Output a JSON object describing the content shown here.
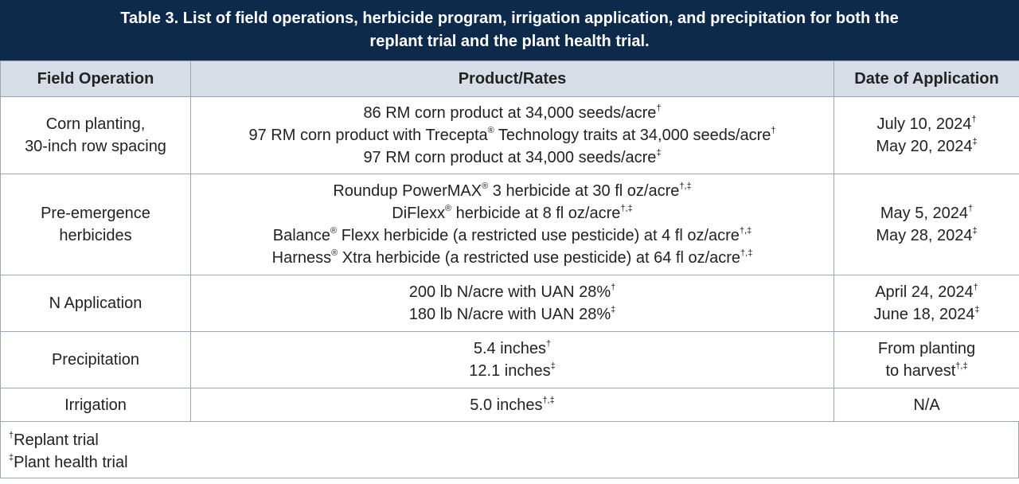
{
  "title": {
    "line1": "Table 3. List of field operations, herbicide program, irrigation application, and precipitation for both the",
    "line2": "replant trial and the plant health trial."
  },
  "headers": {
    "operation": "Field Operation",
    "product": "Product/Rates",
    "date": "Date of Application"
  },
  "rows": [
    {
      "operation": [
        "Corn planting,",
        "30-inch row spacing"
      ],
      "products": [
        {
          "pre": "86 RM corn product at 34,000 seeds/acre",
          "sup": "†"
        },
        {
          "pre": "97 RM corn product with Trecepta",
          "mark": "®",
          "post": " Technology traits at 34,000 seeds/acre",
          "sup": "†"
        },
        {
          "pre": "97 RM corn product at 34,000 seeds/acre",
          "sup": "‡"
        }
      ],
      "dates": [
        {
          "text": "July 10, 2024",
          "sup": "†"
        },
        {
          "text": "May 20, 2024",
          "sup": "‡"
        }
      ]
    },
    {
      "operation": [
        "Pre-emergence",
        "herbicides"
      ],
      "products": [
        {
          "pre": "Roundup PowerMAX",
          "mark": "®",
          "post": " 3 herbicide at 30 fl oz/acre",
          "sup": "†,‡"
        },
        {
          "pre": "DiFlexx",
          "mark": "®",
          "post": " herbicide at 8 fl oz/acre",
          "sup": "†,‡"
        },
        {
          "pre": "Balance",
          "mark": "®",
          "post": " Flexx herbicide (a restricted use pesticide) at 4 fl oz/acre",
          "sup": "†,‡"
        },
        {
          "pre": "Harness",
          "mark": "®",
          "post": " Xtra herbicide (a restricted use pesticide) at 64 fl oz/acre",
          "sup": "†,‡"
        }
      ],
      "dates": [
        {
          "text": "May 5, 2024",
          "sup": "†"
        },
        {
          "text": "May 28, 2024",
          "sup": "‡"
        }
      ]
    },
    {
      "operation": [
        "N Application"
      ],
      "products": [
        {
          "pre": "200 lb N/acre with UAN 28%",
          "sup": "†"
        },
        {
          "pre": "180 lb N/acre with UAN 28%",
          "sup": "‡"
        }
      ],
      "dates": [
        {
          "text": "April 24, 2024",
          "sup": "†"
        },
        {
          "text": "June 18, 2024",
          "sup": "‡"
        }
      ]
    },
    {
      "operation": [
        "Precipitation"
      ],
      "products": [
        {
          "pre": "5.4 inches",
          "sup": "†"
        },
        {
          "pre": "12.1 inches",
          "sup": "‡"
        }
      ],
      "dates": [
        {
          "text": "From planting"
        },
        {
          "text": "to harvest",
          "sup": "†,‡"
        }
      ]
    },
    {
      "operation": [
        "Irrigation"
      ],
      "products": [
        {
          "pre": "5.0 inches",
          "sup": "†,‡"
        }
      ],
      "dates": [
        {
          "text": "N/A"
        }
      ]
    }
  ],
  "footnotes": [
    {
      "mark": "†",
      "text": "Replant trial"
    },
    {
      "mark": "‡",
      "text": "Plant health trial"
    }
  ]
}
